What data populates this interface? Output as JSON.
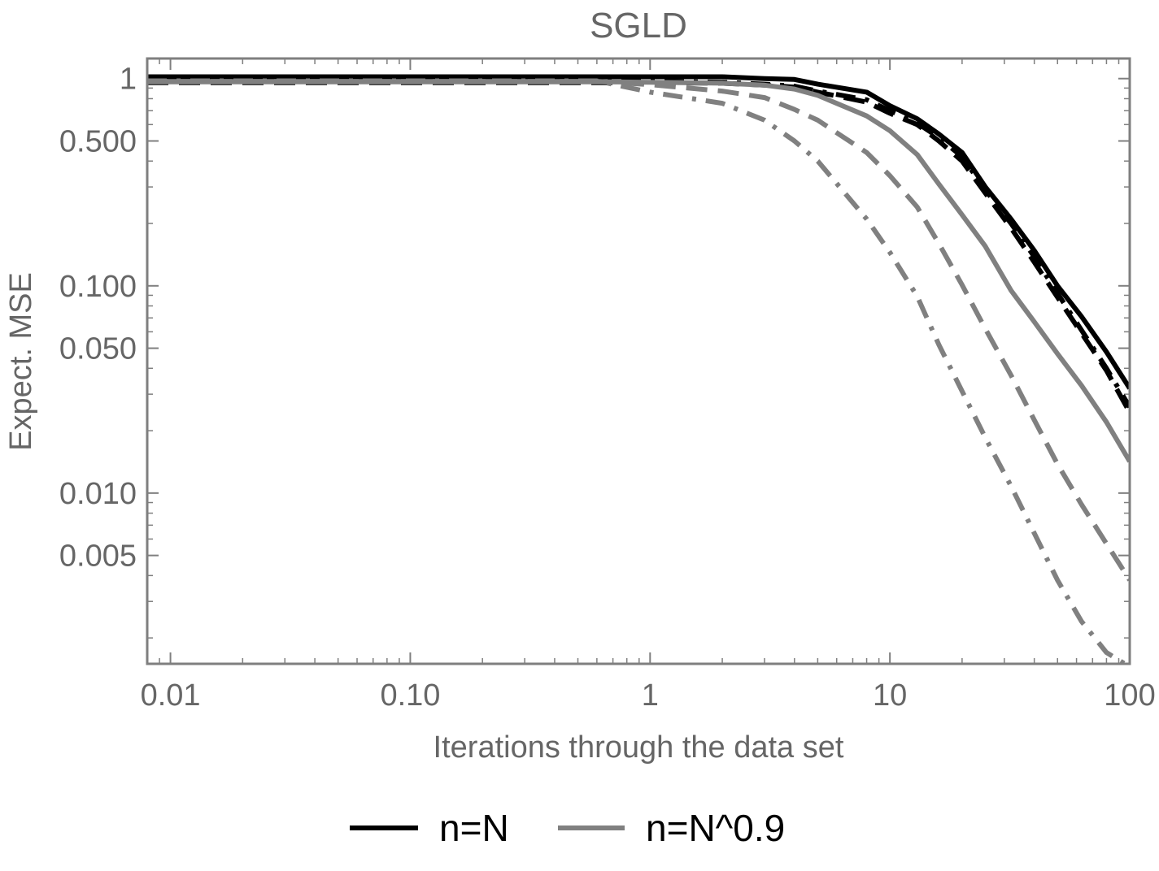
{
  "chart_data": {
    "type": "line",
    "title": "SGLD",
    "xlabel": "Iterations through the data set",
    "ylabel": "Expect. MSE",
    "xscale": "log",
    "yscale": "log",
    "xlim": [
      0.008,
      100
    ],
    "ylim": [
      0.0015,
      1.25
    ],
    "grid": false,
    "legend_placement": "bottom-center",
    "x_ticks": [
      {
        "value": 0.01,
        "label": "0.01"
      },
      {
        "value": 0.1,
        "label": "0.10"
      },
      {
        "value": 1,
        "label": "1"
      },
      {
        "value": 10,
        "label": "10"
      },
      {
        "value": 100,
        "label": "100"
      }
    ],
    "y_ticks": [
      {
        "value": 1,
        "label": "1"
      },
      {
        "value": 0.5,
        "label": "0.500"
      },
      {
        "value": 0.1,
        "label": "0.100"
      },
      {
        "value": 0.05,
        "label": "0.050"
      },
      {
        "value": 0.01,
        "label": "0.010"
      },
      {
        "value": 0.005,
        "label": "0.005"
      }
    ],
    "legend": [
      {
        "label": "n=N",
        "color": "#000000"
      },
      {
        "label": "n=N^0.9",
        "color": "#808080"
      }
    ],
    "series": [
      {
        "color": "#000000",
        "dash": "solid",
        "points": [
          [
            0.008,
            1.02
          ],
          [
            0.1,
            1.02
          ],
          [
            1,
            1.02
          ],
          [
            2,
            1.02
          ],
          [
            3,
            1.0
          ],
          [
            4,
            0.99
          ],
          [
            5,
            0.94
          ],
          [
            8,
            0.86
          ],
          [
            10,
            0.74
          ],
          [
            13,
            0.64
          ],
          [
            16,
            0.54
          ],
          [
            20,
            0.44
          ],
          [
            25,
            0.3
          ],
          [
            32,
            0.21
          ],
          [
            40,
            0.148
          ],
          [
            50,
            0.1
          ],
          [
            63,
            0.071
          ],
          [
            80,
            0.048
          ],
          [
            100,
            0.032
          ]
        ]
      },
      {
        "color": "#000000",
        "dash": "dash",
        "points": [
          [
            0.008,
            0.955
          ],
          [
            0.1,
            0.955
          ],
          [
            1,
            0.955
          ],
          [
            2,
            0.95
          ],
          [
            3,
            0.93
          ],
          [
            4,
            0.91
          ],
          [
            5,
            0.86
          ],
          [
            8,
            0.77
          ],
          [
            10,
            0.68
          ],
          [
            13,
            0.6
          ],
          [
            16,
            0.5
          ],
          [
            20,
            0.4
          ],
          [
            25,
            0.28
          ],
          [
            32,
            0.19
          ],
          [
            40,
            0.13
          ],
          [
            50,
            0.088
          ],
          [
            63,
            0.059
          ],
          [
            80,
            0.039
          ],
          [
            100,
            0.0245
          ]
        ]
      },
      {
        "color": "#000000",
        "dash": "dashdot",
        "points": [
          [
            0.008,
            0.97
          ],
          [
            0.1,
            0.97
          ],
          [
            1,
            0.97
          ],
          [
            2,
            0.96
          ],
          [
            3,
            0.94
          ],
          [
            4,
            0.92
          ],
          [
            5,
            0.87
          ],
          [
            8,
            0.79
          ],
          [
            10,
            0.7
          ],
          [
            13,
            0.61
          ],
          [
            16,
            0.52
          ],
          [
            20,
            0.42
          ],
          [
            25,
            0.29
          ],
          [
            32,
            0.2
          ],
          [
            40,
            0.138
          ],
          [
            50,
            0.092
          ],
          [
            63,
            0.061
          ],
          [
            80,
            0.04
          ],
          [
            100,
            0.026
          ]
        ]
      },
      {
        "color": "#808080",
        "dash": "solid",
        "points": [
          [
            0.008,
            0.965
          ],
          [
            0.1,
            0.965
          ],
          [
            0.6,
            0.965
          ],
          [
            1,
            0.96
          ],
          [
            2,
            0.95
          ],
          [
            3,
            0.93
          ],
          [
            4,
            0.89
          ],
          [
            5,
            0.83
          ],
          [
            8,
            0.66
          ],
          [
            10,
            0.56
          ],
          [
            13,
            0.43
          ],
          [
            16,
            0.31
          ],
          [
            20,
            0.22
          ],
          [
            25,
            0.155
          ],
          [
            32,
            0.095
          ],
          [
            40,
            0.067
          ],
          [
            50,
            0.047
          ],
          [
            63,
            0.033
          ],
          [
            80,
            0.022
          ],
          [
            100,
            0.0142
          ]
        ]
      },
      {
        "color": "#808080",
        "dash": "dash",
        "points": [
          [
            0.008,
            0.97
          ],
          [
            0.1,
            0.97
          ],
          [
            0.6,
            0.97
          ],
          [
            1,
            0.935
          ],
          [
            2,
            0.87
          ],
          [
            3,
            0.81
          ],
          [
            4,
            0.71
          ],
          [
            5,
            0.63
          ],
          [
            8,
            0.44
          ],
          [
            10,
            0.34
          ],
          [
            13,
            0.24
          ],
          [
            16,
            0.16
          ],
          [
            20,
            0.101
          ],
          [
            25,
            0.062
          ],
          [
            32,
            0.037
          ],
          [
            40,
            0.0225
          ],
          [
            50,
            0.0138
          ],
          [
            63,
            0.0088
          ],
          [
            80,
            0.0057
          ],
          [
            100,
            0.0038
          ]
        ]
      },
      {
        "color": "#808080",
        "dash": "dashdot",
        "points": [
          [
            0.008,
            0.975
          ],
          [
            0.1,
            0.975
          ],
          [
            0.6,
            0.975
          ],
          [
            1,
            0.86
          ],
          [
            2,
            0.76
          ],
          [
            3,
            0.63
          ],
          [
            4,
            0.5
          ],
          [
            5,
            0.4
          ],
          [
            8,
            0.21
          ],
          [
            10,
            0.145
          ],
          [
            13,
            0.089
          ],
          [
            16,
            0.052
          ],
          [
            20,
            0.031
          ],
          [
            25,
            0.0185
          ],
          [
            32,
            0.0108
          ],
          [
            40,
            0.0064
          ],
          [
            50,
            0.0038
          ],
          [
            63,
            0.0024
          ],
          [
            80,
            0.0017
          ],
          [
            100,
            0.00145
          ]
        ]
      }
    ]
  }
}
